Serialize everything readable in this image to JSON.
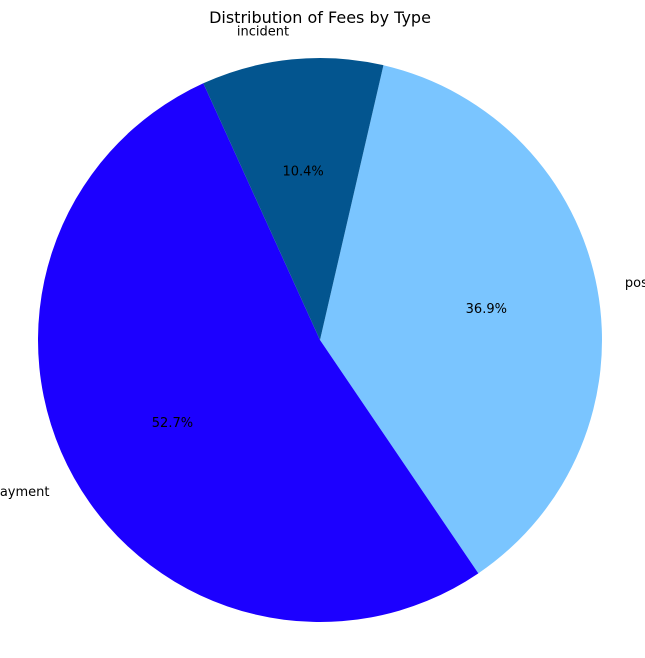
{
  "chart_data": {
    "type": "pie",
    "title": "Distribution of Fees by Type",
    "slices": [
      {
        "label": "postpone",
        "value": 36.9,
        "pct_label": "36.9%",
        "color": "#7AC5FF"
      },
      {
        "label": "instant_payment",
        "value": 52.7,
        "pct_label": "52.7%",
        "color": "#1C00FF"
      },
      {
        "label": "incident",
        "value": 10.4,
        "pct_label": "10.4%",
        "color": "#03558F"
      }
    ],
    "legend": "none"
  }
}
